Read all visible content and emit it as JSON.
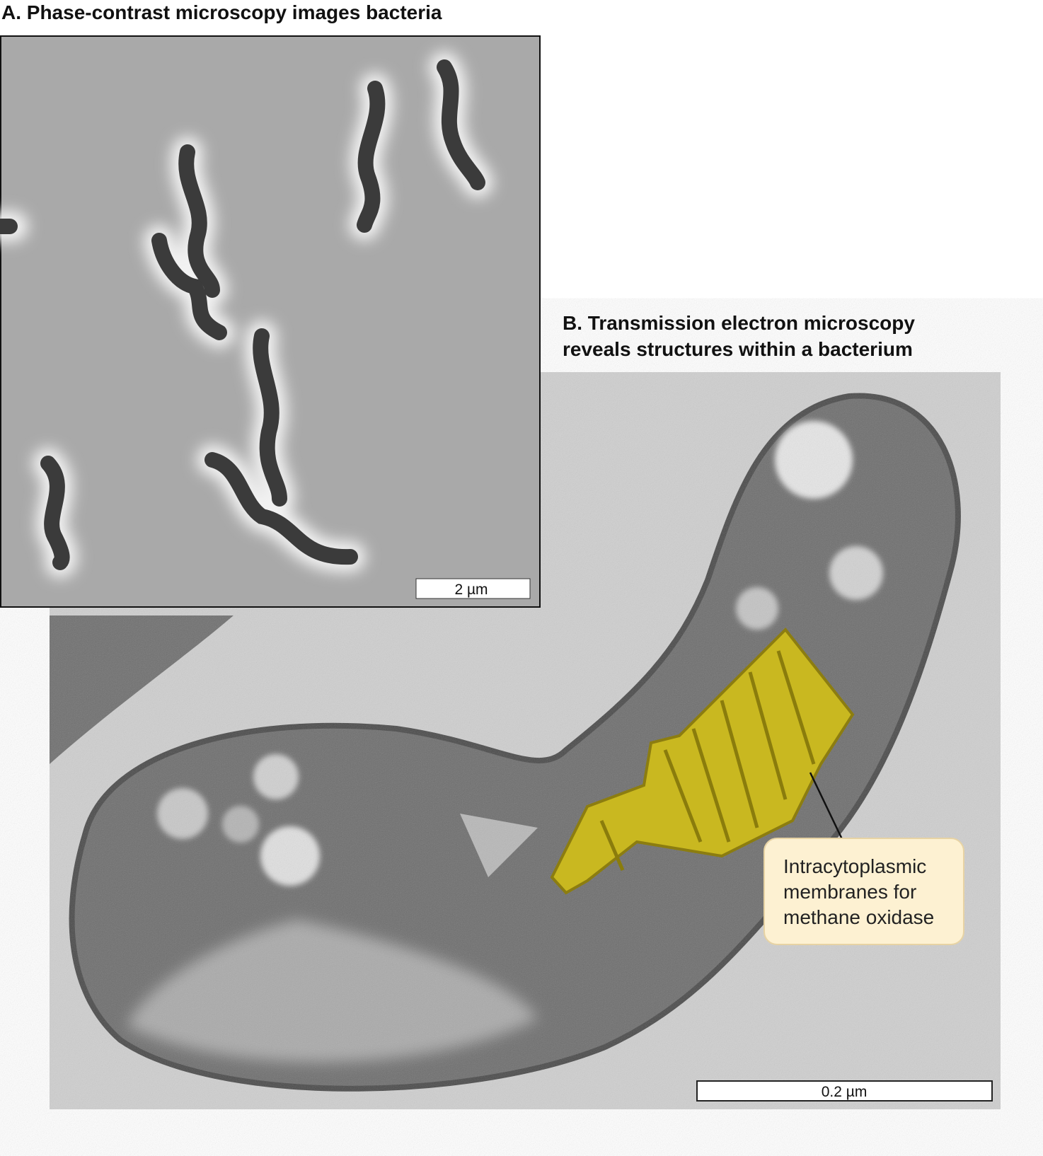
{
  "panel_a": {
    "title": "A. Phase-contrast microscopy images bacteria",
    "scale_bar": "2 µm"
  },
  "panel_b": {
    "title_lines": [
      "B. Transmission electron microscopy",
      "reveals structures within a bacterium"
    ],
    "callout_lines": [
      "Intracytoplasmic",
      "membranes for",
      "methane oxidase"
    ],
    "scale_bar": "0.2 µm"
  }
}
